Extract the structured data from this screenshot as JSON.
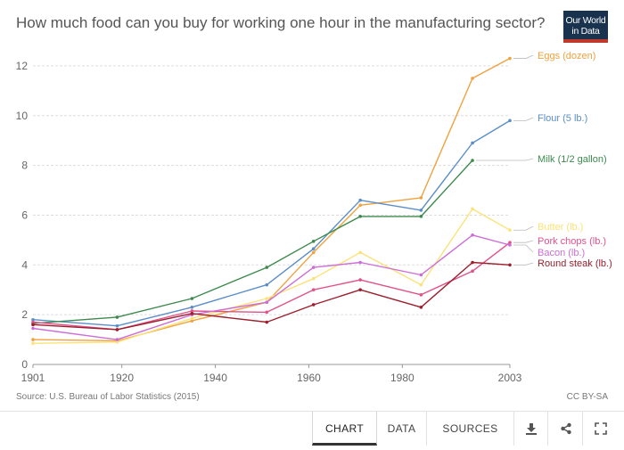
{
  "header": {
    "title": "How much food can you buy for working one hour in the manufacturing sector?",
    "logo_line1": "Our World",
    "logo_line2": "in Data"
  },
  "footer": {
    "source": "Source: U.S. Bureau of Labor Statistics (2015)",
    "license": "CC BY-SA",
    "tabs": [
      "CHART",
      "DATA",
      "SOURCES"
    ],
    "active_tab": "CHART",
    "icons": [
      "download-icon",
      "share-icon",
      "fullscreen-icon"
    ]
  },
  "chart_data": {
    "type": "line",
    "title": "How much food can you buy for working one hour in the manufacturing sector?",
    "xlabel": "",
    "ylabel": "",
    "xlim": [
      1901,
      2003
    ],
    "ylim": [
      0,
      13
    ],
    "x_ticks": [
      1901,
      1920,
      1940,
      1960,
      1980,
      2003
    ],
    "y_ticks": [
      0,
      2,
      4,
      6,
      8,
      10,
      12
    ],
    "grid": "horizontal dashed",
    "legend": "labels at right end of lines",
    "series": [
      {
        "name": "Eggs (dozen)",
        "color": "#f0a23f",
        "points": [
          [
            1901,
            1.0
          ],
          [
            1919,
            0.95
          ],
          [
            1935,
            1.75
          ],
          [
            1951,
            2.5
          ],
          [
            1961,
            4.5
          ],
          [
            1971,
            6.4
          ],
          [
            1984,
            6.7
          ],
          [
            1995,
            11.5
          ],
          [
            2003,
            12.3
          ]
        ]
      },
      {
        "name": "Flour (5 lb.)",
        "color": "#5b8ec8",
        "points": [
          [
            1901,
            1.8
          ],
          [
            1919,
            1.55
          ],
          [
            1935,
            2.3
          ],
          [
            1951,
            3.2
          ],
          [
            1961,
            4.65
          ],
          [
            1971,
            6.6
          ],
          [
            1984,
            6.2
          ],
          [
            1995,
            8.9
          ],
          [
            2003,
            9.8
          ]
        ]
      },
      {
        "name": "Milk (1/2 gallon)",
        "color": "#3d8a4e",
        "points": [
          [
            1901,
            1.65
          ],
          [
            1919,
            1.9
          ],
          [
            1935,
            2.65
          ],
          [
            1951,
            3.9
          ],
          [
            1961,
            4.95
          ],
          [
            1971,
            5.95
          ],
          [
            1984,
            5.95
          ],
          [
            1995,
            8.2
          ]
        ]
      },
      {
        "name": "Butter (lb.)",
        "color": "#fbe27a",
        "points": [
          [
            1901,
            0.85
          ],
          [
            1919,
            0.9
          ],
          [
            1935,
            1.85
          ],
          [
            1951,
            2.65
          ],
          [
            1961,
            3.45
          ],
          [
            1971,
            4.5
          ],
          [
            1984,
            3.2
          ],
          [
            1995,
            6.25
          ],
          [
            2003,
            5.4
          ]
        ]
      },
      {
        "name": "Pork chops (lb.)",
        "color": "#e0528a",
        "points": [
          [
            1901,
            1.7
          ],
          [
            1919,
            1.4
          ],
          [
            1935,
            2.15
          ],
          [
            1951,
            2.1
          ],
          [
            1961,
            3.0
          ],
          [
            1971,
            3.4
          ],
          [
            1984,
            2.8
          ],
          [
            1995,
            3.75
          ],
          [
            2003,
            4.9
          ]
        ]
      },
      {
        "name": "Bacon (lb.)",
        "color": "#cc6ed6",
        "points": [
          [
            1901,
            1.45
          ],
          [
            1919,
            1.0
          ],
          [
            1935,
            2.0
          ],
          [
            1951,
            2.5
          ],
          [
            1961,
            3.9
          ],
          [
            1971,
            4.1
          ],
          [
            1984,
            3.6
          ],
          [
            1995,
            5.2
          ],
          [
            2003,
            4.8
          ]
        ]
      },
      {
        "name": "Round steak (lb.)",
        "color": "#9c1f2e",
        "points": [
          [
            1901,
            1.6
          ],
          [
            1919,
            1.4
          ],
          [
            1935,
            2.05
          ],
          [
            1951,
            1.7
          ],
          [
            1961,
            2.4
          ],
          [
            1971,
            3.0
          ],
          [
            1984,
            2.3
          ],
          [
            1995,
            4.1
          ],
          [
            2003,
            4.0
          ]
        ]
      }
    ]
  }
}
